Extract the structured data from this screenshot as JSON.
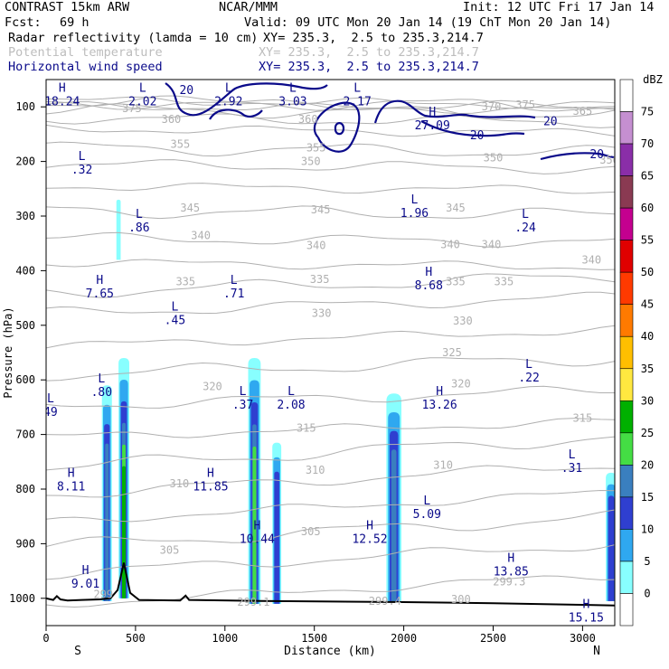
{
  "header": {
    "model": "CONTRAST 15km ARW",
    "org": "NCAR/MMM",
    "init": "Init: 12 UTC Fri 17 Jan 14",
    "fcst_label": "Fcst:",
    "fcst_value": "69 h",
    "valid": "Valid: 09 UTC Mon 20 Jan 14 (19 ChT Mon 20 Jan 14)",
    "fields": [
      {
        "name": "Radar reflectivity (lamda = 10 cm)",
        "xy": "XY= 235.3,  2.5 to 235.3,214.7",
        "color": "#000000"
      },
      {
        "name": "Potential temperature",
        "xy": "XY= 235.3,  2.5 to 235.3,214.7",
        "color": "#bdbdbd"
      },
      {
        "name": "Horizontal wind speed",
        "xy": "XY= 235.3,  2.5 to 235.3,214.7",
        "color": "#0a0a8a"
      }
    ]
  },
  "chart_data": {
    "type": "cross-section",
    "xlabel": "Distance (km)",
    "ylabel": "Pressure (hPa)",
    "xlim": [
      0,
      3180
    ],
    "ylim": [
      1050,
      50
    ],
    "xticks": [
      0,
      500,
      1000,
      1500,
      2000,
      2500,
      3000
    ],
    "yticks": [
      100,
      200,
      300,
      400,
      500,
      600,
      700,
      800,
      900,
      1000
    ],
    "end_labels": {
      "left": "S",
      "right": "N"
    },
    "colorbar": {
      "title": "dBZ",
      "levels": [
        75,
        70,
        65,
        60,
        55,
        50,
        45,
        40,
        35,
        30,
        25,
        20,
        15,
        10,
        5,
        0
      ],
      "colors": [
        "#ffffff",
        "#c58fd1",
        "#8a2ea8",
        "#8a3a52",
        "#c4008f",
        "#e00000",
        "#ff3a00",
        "#ff7a00",
        "#ffbf00",
        "#ffe840",
        "#00b000",
        "#44dd44",
        "#3a7fbf",
        "#2f3fd0",
        "#2fa8f0",
        "#88ffff",
        "#ffffff"
      ]
    },
    "theta_labels": [
      {
        "text": "375",
        "x": 480,
        "p": 103
      },
      {
        "text": "375",
        "x": 2680,
        "p": 96
      },
      {
        "text": "370",
        "x": 2490,
        "p": 100
      },
      {
        "text": "365",
        "x": 3000,
        "p": 108
      },
      {
        "text": "360",
        "x": 700,
        "p": 123
      },
      {
        "text": "360",
        "x": 1465,
        "p": 123
      },
      {
        "text": "355",
        "x": 750,
        "p": 168
      },
      {
        "text": "355",
        "x": 1510,
        "p": 175
      },
      {
        "text": "350",
        "x": 1480,
        "p": 200
      },
      {
        "text": "350",
        "x": 2500,
        "p": 193
      },
      {
        "text": "350",
        "x": 3150,
        "p": 197
      },
      {
        "text": "345",
        "x": 805,
        "p": 285
      },
      {
        "text": "345",
        "x": 1535,
        "p": 288
      },
      {
        "text": "345",
        "x": 2290,
        "p": 285
      },
      {
        "text": "340",
        "x": 865,
        "p": 336
      },
      {
        "text": "340",
        "x": 1510,
        "p": 354
      },
      {
        "text": "340",
        "x": 2260,
        "p": 352
      },
      {
        "text": "340",
        "x": 2490,
        "p": 352
      },
      {
        "text": "340",
        "x": 3050,
        "p": 380
      },
      {
        "text": "335",
        "x": 780,
        "p": 420
      },
      {
        "text": "335",
        "x": 1530,
        "p": 416
      },
      {
        "text": "335",
        "x": 2290,
        "p": 420
      },
      {
        "text": "335",
        "x": 2560,
        "p": 420
      },
      {
        "text": "330",
        "x": 1540,
        "p": 478
      },
      {
        "text": "330",
        "x": 2330,
        "p": 492
      },
      {
        "text": "325",
        "x": 2270,
        "p": 550
      },
      {
        "text": "320",
        "x": 930,
        "p": 612
      },
      {
        "text": "320",
        "x": 2320,
        "p": 607
      },
      {
        "text": "315",
        "x": 1455,
        "p": 688
      },
      {
        "text": "315",
        "x": 3000,
        "p": 670
      },
      {
        "text": "310",
        "x": 745,
        "p": 790
      },
      {
        "text": "310",
        "x": 1505,
        "p": 765
      },
      {
        "text": "310",
        "x": 2220,
        "p": 756
      },
      {
        "text": "305",
        "x": 690,
        "p": 912
      },
      {
        "text": "305",
        "x": 1480,
        "p": 878
      },
      {
        "text": "299.3",
        "x": 2590,
        "p": 970
      },
      {
        "text": "300",
        "x": 2320,
        "p": 1002
      },
      {
        "text": "299.1",
        "x": 1160,
        "p": 1007
      },
      {
        "text": "299.4",
        "x": 1895,
        "p": 1005
      },
      {
        "text": "299",
        "x": 320,
        "p": 993
      }
    ],
    "wind_labels": [
      {
        "text": "20",
        "x": 785,
        "p": 68
      },
      {
        "text": "20",
        "x": 2820,
        "p": 125
      },
      {
        "text": "20",
        "x": 2410,
        "p": 151
      },
      {
        "text": "20",
        "x": 3080,
        "p": 186
      }
    ],
    "hl_markers": [
      {
        "type": "H",
        "value": "18.24",
        "x": 90,
        "p": 77
      },
      {
        "type": "L",
        "value": "2.02",
        "x": 540,
        "p": 77
      },
      {
        "type": "L",
        "value": "2.92",
        "x": 1020,
        "p": 77
      },
      {
        "type": "L",
        "value": "3.03",
        "x": 1380,
        "p": 77
      },
      {
        "type": "L",
        "value": "2.17",
        "x": 1740,
        "p": 77
      },
      {
        "type": "H",
        "value": "27.09",
        "x": 2160,
        "p": 121
      },
      {
        "type": "L",
        "value": ".32",
        "x": 200,
        "p": 202
      },
      {
        "type": "L",
        "value": ".86",
        "x": 520,
        "p": 308
      },
      {
        "type": "L",
        "value": "1.96",
        "x": 2060,
        "p": 282
      },
      {
        "type": "L",
        "value": ".24",
        "x": 2680,
        "p": 308
      },
      {
        "type": "H",
        "value": "7.65",
        "x": 300,
        "p": 429
      },
      {
        "type": "L",
        "value": ".71",
        "x": 1050,
        "p": 429
      },
      {
        "type": "L",
        "value": ".45",
        "x": 720,
        "p": 478
      },
      {
        "type": "H",
        "value": "8.68",
        "x": 2140,
        "p": 414
      },
      {
        "type": "L",
        "value": ".22",
        "x": 2700,
        "p": 583
      },
      {
        "type": "L",
        "value": ".80",
        "x": 310,
        "p": 610
      },
      {
        "type": "L",
        "value": ".37",
        "x": 1100,
        "p": 633
      },
      {
        "type": "L",
        "value": "2.08",
        "x": 1370,
        "p": 633
      },
      {
        "type": "H",
        "value": "13.26",
        "x": 2200,
        "p": 633
      },
      {
        "type": "L",
        "value": "49",
        "x": 25,
        "p": 646
      },
      {
        "type": "L",
        "value": ".31",
        "x": 2940,
        "p": 749
      },
      {
        "type": "H",
        "value": "8.11",
        "x": 140,
        "p": 783
      },
      {
        "type": "H",
        "value": "11.85",
        "x": 920,
        "p": 783
      },
      {
        "type": "L",
        "value": "5.09",
        "x": 2130,
        "p": 833
      },
      {
        "type": "H",
        "value": "10.44",
        "x": 1180,
        "p": 879
      },
      {
        "type": "H",
        "value": "12.52",
        "x": 1810,
        "p": 879
      },
      {
        "type": "H",
        "value": "13.85",
        "x": 2600,
        "p": 938
      },
      {
        "type": "H",
        "value": "9.01",
        "x": 220,
        "p": 961
      },
      {
        "type": "H",
        "value": "15.15",
        "x": 3020,
        "p": 1023
      }
    ],
    "reflectivity_cells": [
      {
        "x": 340,
        "p_top": 610,
        "p_bot": 1005,
        "half_width_km": 28,
        "max_dbz": 20
      },
      {
        "x": 435,
        "p_top": 560,
        "p_bot": 1000,
        "half_width_km": 30,
        "max_dbz": 30
      },
      {
        "x": 1165,
        "p_top": 560,
        "p_bot": 1010,
        "half_width_km": 35,
        "max_dbz": 25
      },
      {
        "x": 1290,
        "p_top": 715,
        "p_bot": 1010,
        "half_width_km": 25,
        "max_dbz": 15
      },
      {
        "x": 1945,
        "p_top": 625,
        "p_bot": 1005,
        "half_width_km": 42,
        "max_dbz": 20
      },
      {
        "x": 3160,
        "p_top": 770,
        "p_bot": 1005,
        "half_width_km": 30,
        "max_dbz": 15
      },
      {
        "x": 405,
        "p_top": 270,
        "p_bot": 380,
        "half_width_km": 12,
        "max_dbz": 5
      }
    ]
  }
}
